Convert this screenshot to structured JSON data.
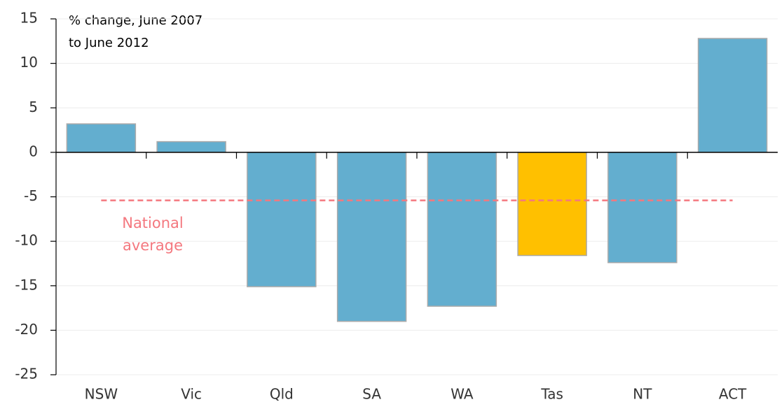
{
  "chart_data": {
    "type": "bar",
    "title_lines": [
      "% change, June 2007",
      "to June 2012"
    ],
    "categories": [
      "NSW",
      "Vic",
      "Qld",
      "SA",
      "WA",
      "Tas",
      "NT",
      "ACT"
    ],
    "values": [
      3.2,
      1.2,
      -15.1,
      -19,
      -17.3,
      -11.6,
      -12.4,
      12.8
    ],
    "colors": [
      "#63aecf",
      "#63aecf",
      "#63aecf",
      "#63aecf",
      "#63aecf",
      "#ffc000",
      "#63aecf",
      "#63aecf"
    ],
    "ylim": [
      -25,
      15
    ],
    "yticks": [
      -25,
      -20,
      -15,
      -10,
      -5,
      0,
      5,
      10,
      15
    ],
    "grid": true,
    "reference_line": {
      "label_lines": [
        "National",
        "average"
      ],
      "value": -5.4,
      "color": "#f4787f"
    }
  }
}
